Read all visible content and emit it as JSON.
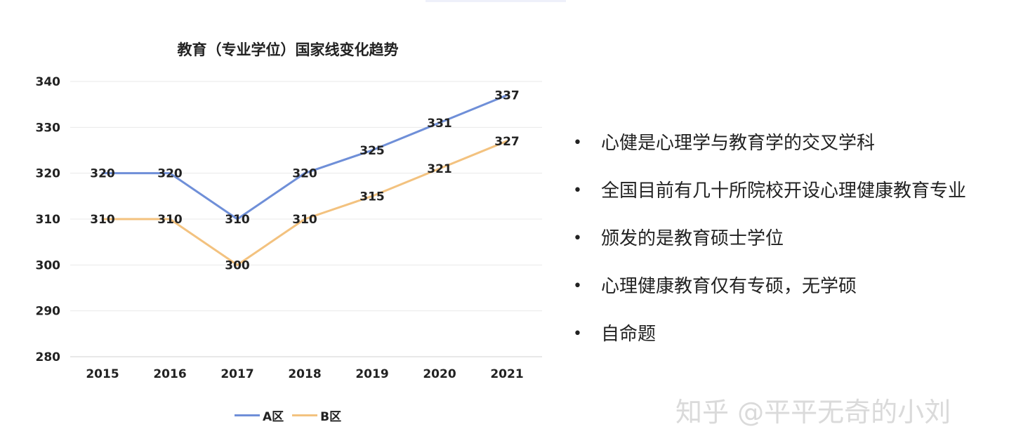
{
  "chart_data": {
    "type": "line",
    "title": "教育（专业学位）国家线变化趋势",
    "xlabel": "",
    "ylabel": "",
    "categories": [
      "2015",
      "2016",
      "2017",
      "2018",
      "2019",
      "2020",
      "2021"
    ],
    "series": [
      {
        "name": "A区",
        "values": [
          320,
          320,
          310,
          320,
          325,
          331,
          337
        ],
        "color": "#6f8fd8"
      },
      {
        "name": "B区",
        "values": [
          310,
          310,
          300,
          310,
          315,
          321,
          327
        ],
        "color": "#f3c27f"
      }
    ],
    "ylim": [
      280,
      340
    ],
    "yticks": [
      "280",
      "290",
      "300",
      "310",
      "320",
      "330",
      "340"
    ],
    "grid": true,
    "legend_position": "bottom",
    "data_labels": true
  },
  "bullets": [
    {
      "text": "心健是心理学与教育学的交叉学科"
    },
    {
      "text": "全国目前有几十所院校开设心理健康教育专业"
    },
    {
      "text": "颁发的是教育硕士学位"
    },
    {
      "text": "心理健康教育仅有专硕，无学硕"
    },
    {
      "text": "自命题"
    }
  ],
  "bullet_symbol": "•",
  "watermark": "知乎 @平平无奇的小刘"
}
